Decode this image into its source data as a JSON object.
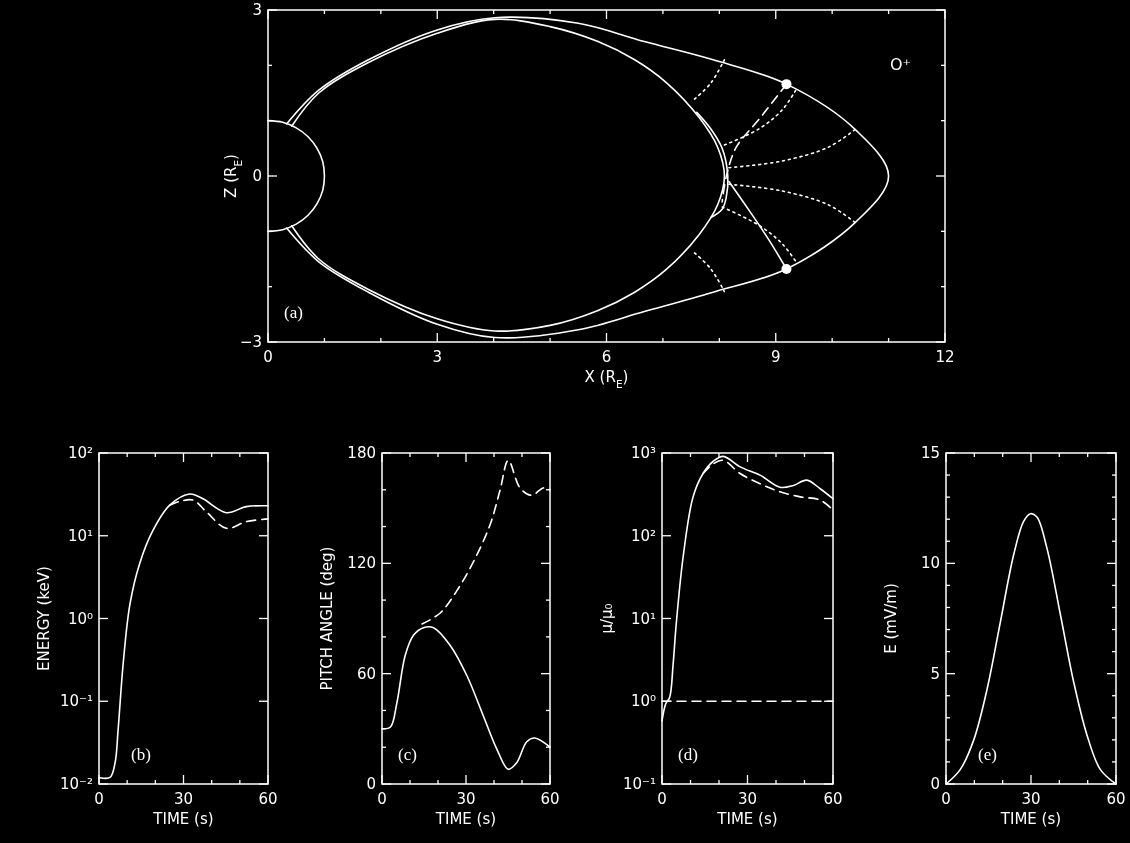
{
  "chart_data": [
    {
      "type": "line",
      "xlabel": "X (R$_{E}$)",
      "ylabel": "Z (R$_{E}$)",
      "xlim": [
        0,
        12
      ],
      "ylim": [
        -3,
        3
      ],
      "xticks": [
        0,
        {
          "value": 1,
          "label": null
        },
        {
          "value": 2,
          "label": null
        },
        3,
        {
          "value": 4,
          "label": null
        },
        {
          "value": 5,
          "label": null
        },
        6,
        {
          "value": 7,
          "label": null
        },
        {
          "value": 8,
          "label": null
        },
        9,
        {
          "value": 10,
          "label": null
        },
        {
          "value": 11,
          "label": null
        },
        12
      ],
      "yticks": [
        {
          "value": -3,
          "label": "−3"
        },
        {
          "value": -2,
          "label": null
        },
        {
          "value": -1,
          "label": null
        },
        0,
        {
          "value": 1,
          "label": null
        },
        {
          "value": 2,
          "label": null
        },
        3
      ],
      "annotations": [
        "(a)",
        "O⁺"
      ],
      "series": [
        {
          "type": "line",
          "line_style": "solid",
          "color": "#ffffff",
          "x": [
            0,
            0.26,
            0.5,
            0.71,
            0.87,
            0.97,
            1,
            0.97,
            0.87,
            0.71,
            0.5,
            0.26,
            0
          ],
          "values": [
            1,
            0.97,
            0.87,
            0.71,
            0.5,
            0.26,
            0,
            -0.26,
            -0.5,
            -0.71,
            -0.87,
            -0.97,
            -1
          ]
        },
        {
          "type": "line",
          "line_style": "solid",
          "color": "#ffffff",
          "x": [
            0.33,
            0.9,
            1.78,
            3.0,
            4.02,
            5.5,
            6.67,
            7.89,
            9.19,
            10.42,
            11.0,
            10.42,
            9.19,
            7.89,
            6.67,
            5.5,
            4.02,
            3.0,
            1.78,
            0.9,
            0.33
          ],
          "values": [
            0.94,
            1.55,
            2.1,
            2.64,
            2.86,
            2.76,
            2.43,
            2.1,
            1.66,
            0.83,
            0,
            -0.83,
            -1.68,
            -2.1,
            -2.45,
            -2.78,
            -2.92,
            -2.68,
            -2.1,
            -1.55,
            -0.94
          ]
        },
        {
          "type": "line",
          "line_style": "solid",
          "color": "#ffffff",
          "x": [
            0.42,
            0.9,
            1.78,
            3.0,
            4.02,
            5.0,
            5.85,
            6.5,
            7.07,
            7.64,
            7.97,
            8.09,
            7.97,
            7.64,
            7.07,
            6.5,
            5.85,
            5.0,
            4.02,
            3.0,
            1.78,
            0.9,
            0.42
          ],
          "values": [
            0.9,
            1.5,
            2.05,
            2.58,
            2.83,
            2.7,
            2.43,
            2.1,
            1.68,
            1.06,
            0.52,
            0,
            -0.52,
            -1.06,
            -1.68,
            -2.1,
            -2.43,
            -2.7,
            -2.8,
            -2.58,
            -2.05,
            -1.5,
            -0.9
          ]
        },
        {
          "type": "line",
          "line_style": "solid",
          "color": "#ffffff",
          "x": [
            7.6,
            7.85,
            8.05,
            8.15,
            8.12,
            8.05,
            7.85
          ],
          "values": [
            1.15,
            0.85,
            0.5,
            0,
            -0.4,
            -0.6,
            -0.75
          ]
        },
        {
          "type": "line",
          "line_style": "solid",
          "color": "#ffffff",
          "x": [
            8.17,
            8.54,
            8.87,
            9.19
          ],
          "values": [
            -0.1,
            -0.64,
            -1.14,
            -1.68
          ]
        },
        {
          "type": "line",
          "line_style": "dashed",
          "color": "#ffffff",
          "x": [
            9.19,
            8.7,
            8.3,
            8.13,
            8.05
          ],
          "values": [
            1.66,
            1.02,
            0.52,
            0.02,
            -0.47
          ]
        },
        {
          "type": "line",
          "line_style": "dotted",
          "color": "#ffffff",
          "x": [
            7.56,
            7.85,
            8.09
          ],
          "values": [
            1.39,
            1.68,
            2.1
          ]
        },
        {
          "type": "line",
          "line_style": "dotted",
          "color": "#ffffff",
          "x": [
            7.56,
            7.85,
            8.09
          ],
          "values": [
            -1.39,
            -1.68,
            -2.09
          ]
        },
        {
          "type": "line",
          "line_style": "dotted",
          "color": "#ffffff",
          "x": [
            8.09,
            8.7,
            9.11,
            9.36
          ],
          "values": [
            0.56,
            0.85,
            1.19,
            1.56
          ]
        },
        {
          "type": "line",
          "line_style": "dotted",
          "color": "#ffffff",
          "x": [
            8.17,
            9.11,
            9.93,
            10.42
          ],
          "values": [
            0.15,
            0.27,
            0.52,
            0.85
          ]
        },
        {
          "type": "line",
          "line_style": "dotted",
          "color": "#ffffff",
          "x": [
            8.17,
            9.11,
            9.93,
            10.42
          ],
          "values": [
            -0.15,
            -0.27,
            -0.52,
            -0.85
          ]
        },
        {
          "type": "line",
          "line_style": "dotted",
          "color": "#ffffff",
          "x": [
            8.05,
            8.7,
            9.11,
            9.36
          ],
          "values": [
            -0.56,
            -0.89,
            -1.22,
            -1.55
          ]
        },
        {
          "type": "scatter",
          "marker": "circle",
          "color": "#ffffff",
          "x": [
            9.19,
            9.19
          ],
          "values": [
            1.66,
            -1.68
          ]
        }
      ]
    },
    {
      "type": "line",
      "xlabel": "TIME (s)",
      "ylabel": "ENERGY (keV)",
      "log": "y",
      "xlim": [
        0,
        60
      ],
      "ylim": [
        0.01,
        100
      ],
      "xticks": [
        0,
        {
          "value": 10,
          "label": null
        },
        {
          "value": 20,
          "label": null
        },
        30,
        {
          "value": 40,
          "label": null
        },
        {
          "value": 50,
          "label": null
        },
        60
      ],
      "yticks": [
        {
          "value": 0.01,
          "label": "10⁻²"
        },
        {
          "value": 0.1,
          "label": "10⁻¹"
        },
        {
          "value": 1,
          "label": "10⁰"
        },
        {
          "value": 10,
          "label": "10¹"
        },
        {
          "value": 100,
          "label": "10²"
        }
      ],
      "annotations": [
        "(b)"
      ],
      "series": [
        {
          "line_style": "solid",
          "color": "#ffffff",
          "x": [
            0,
            3.9,
            5.7,
            6.8,
            8.6,
            11,
            14.5,
            19.2,
            25.1,
            32.2,
            36.9,
            45.2,
            52.3,
            60
          ],
          "values": [
            0.012,
            0.012,
            0.018,
            0.046,
            0.29,
            1.5,
            4.7,
            11.7,
            23.4,
            32,
            28,
            19,
            22.5,
            23
          ]
        },
        {
          "line_style": "dashed",
          "color": "#ffffff",
          "x": [
            25.1,
            28.7,
            33.4,
            38.1,
            45.2,
            52.3,
            60
          ],
          "values": [
            23.4,
            26,
            27,
            19.5,
            12.3,
            14.8,
            16
          ]
        }
      ]
    },
    {
      "type": "line",
      "xlabel": "TIME (s)",
      "ylabel": "PITCH ANGLE (deg)",
      "xlim": [
        0,
        60
      ],
      "ylim": [
        0,
        180
      ],
      "xticks": [
        0,
        {
          "value": 10,
          "label": null
        },
        {
          "value": 20,
          "label": null
        },
        30,
        {
          "value": 40,
          "label": null
        },
        {
          "value": 50,
          "label": null
        },
        60
      ],
      "yticks": [
        0,
        {
          "value": 20,
          "label": null
        },
        {
          "value": 40,
          "label": null
        },
        60,
        {
          "value": 80,
          "label": null
        },
        {
          "value": 100,
          "label": null
        },
        120,
        {
          "value": 140,
          "label": null
        },
        {
          "value": 160,
          "label": null
        },
        180
      ],
      "annotations": [
        "(c)"
      ],
      "series": [
        {
          "line_style": "solid",
          "color": "#ffffff",
          "x": [
            0,
            3,
            5.3,
            8.3,
            11.3,
            14.8,
            18.4,
            24.3,
            30.3,
            36.2,
            41,
            45.1,
            48.1,
            51.7,
            54.6,
            60
          ],
          "values": [
            30,
            31,
            44,
            70,
            81,
            85,
            85,
            75.5,
            59,
            37,
            19,
            8,
            11.5,
            23,
            25,
            20
          ]
        },
        {
          "line_style": "dashed",
          "color": "#ffffff",
          "x": [
            14.3,
            20.8,
            26.7,
            32.7,
            38.6,
            42.2,
            45.1,
            49.3,
            53.4,
            57.6,
            60
          ],
          "values": [
            87,
            93,
            105,
            121,
            141,
            160,
            176,
            161,
            157,
            161,
            160
          ]
        }
      ]
    },
    {
      "type": "line",
      "xlabel": "TIME (s)",
      "ylabel": "μ/μ₀",
      "log": "y",
      "xlim": [
        0,
        60
      ],
      "ylim": [
        0.1,
        1000
      ],
      "xticks": [
        0,
        {
          "value": 10,
          "label": null
        },
        {
          "value": 20,
          "label": null
        },
        30,
        {
          "value": 40,
          "label": null
        },
        {
          "value": 50,
          "label": null
        },
        60
      ],
      "yticks": [
        {
          "value": 0.1,
          "label": "10⁻¹"
        },
        {
          "value": 1,
          "label": "10⁰"
        },
        {
          "value": 10,
          "label": "10¹"
        },
        {
          "value": 100,
          "label": "10²"
        },
        {
          "value": 1000,
          "label": "10³"
        }
      ],
      "annotations": [
        "(d)"
      ],
      "series": [
        {
          "line_style": "solid",
          "color": "#ffffff",
          "x": [
            0,
            1.3,
            2.7,
            3.9,
            5,
            7.4,
            10.9,
            14.4,
            18,
            21.5,
            27.4,
            34.4,
            41.4,
            46.1,
            50.8,
            55.5,
            60
          ],
          "values": [
            0.58,
            0.93,
            1.12,
            2.8,
            8.6,
            55,
            295,
            565,
            795,
            910,
            680,
            540,
            385,
            405,
            470,
            370,
            280
          ]
        },
        {
          "line_style": "dashed",
          "color": "#ffffff",
          "x": [
            14.4,
            18,
            21.5,
            27.4,
            34.4,
            41.4,
            48.5,
            55.5,
            60
          ],
          "values": [
            565,
            740,
            815,
            565,
            425,
            340,
            295,
            270,
            205
          ]
        },
        {
          "line_style": "dashed",
          "color": "#ffffff",
          "x": [
            0,
            60
          ],
          "values": [
            1,
            1
          ]
        }
      ]
    },
    {
      "type": "line",
      "xlabel": "TIME (s)",
      "ylabel": "E (mV/m)",
      "xlim": [
        0,
        60
      ],
      "ylim": [
        0,
        15
      ],
      "xticks": [
        0,
        {
          "value": 10,
          "label": null
        },
        {
          "value": 20,
          "label": null
        },
        30,
        {
          "value": 40,
          "label": null
        },
        {
          "value": 50,
          "label": null
        },
        60
      ],
      "yticks": [
        0,
        {
          "value": 1,
          "label": null
        },
        {
          "value": 2,
          "label": null
        },
        {
          "value": 3,
          "label": null
        },
        {
          "value": 4,
          "label": null
        },
        5,
        {
          "value": 6,
          "label": null
        },
        {
          "value": 7,
          "label": null
        },
        {
          "value": 8,
          "label": null
        },
        {
          "value": 9,
          "label": null
        },
        10,
        {
          "value": 11,
          "label": null
        },
        {
          "value": 12,
          "label": null
        },
        {
          "value": 13,
          "label": null
        },
        {
          "value": 14,
          "label": null
        },
        15
      ],
      "annotations": [
        "(e)"
      ],
      "series": [
        {
          "line_style": "solid",
          "color": "#ffffff",
          "x": [
            0,
            5,
            9.8,
            14.5,
            19.2,
            23.9,
            27.4,
            29.8,
            32.1,
            35.6,
            40.4,
            45.1,
            49.8,
            54.5,
            60
          ],
          "values": [
            0,
            0.65,
            2.0,
            4.3,
            7.35,
            10.4,
            11.9,
            12.25,
            12.1,
            10.7,
            7.66,
            4.6,
            2.2,
            0.65,
            0
          ]
        }
      ]
    }
  ]
}
